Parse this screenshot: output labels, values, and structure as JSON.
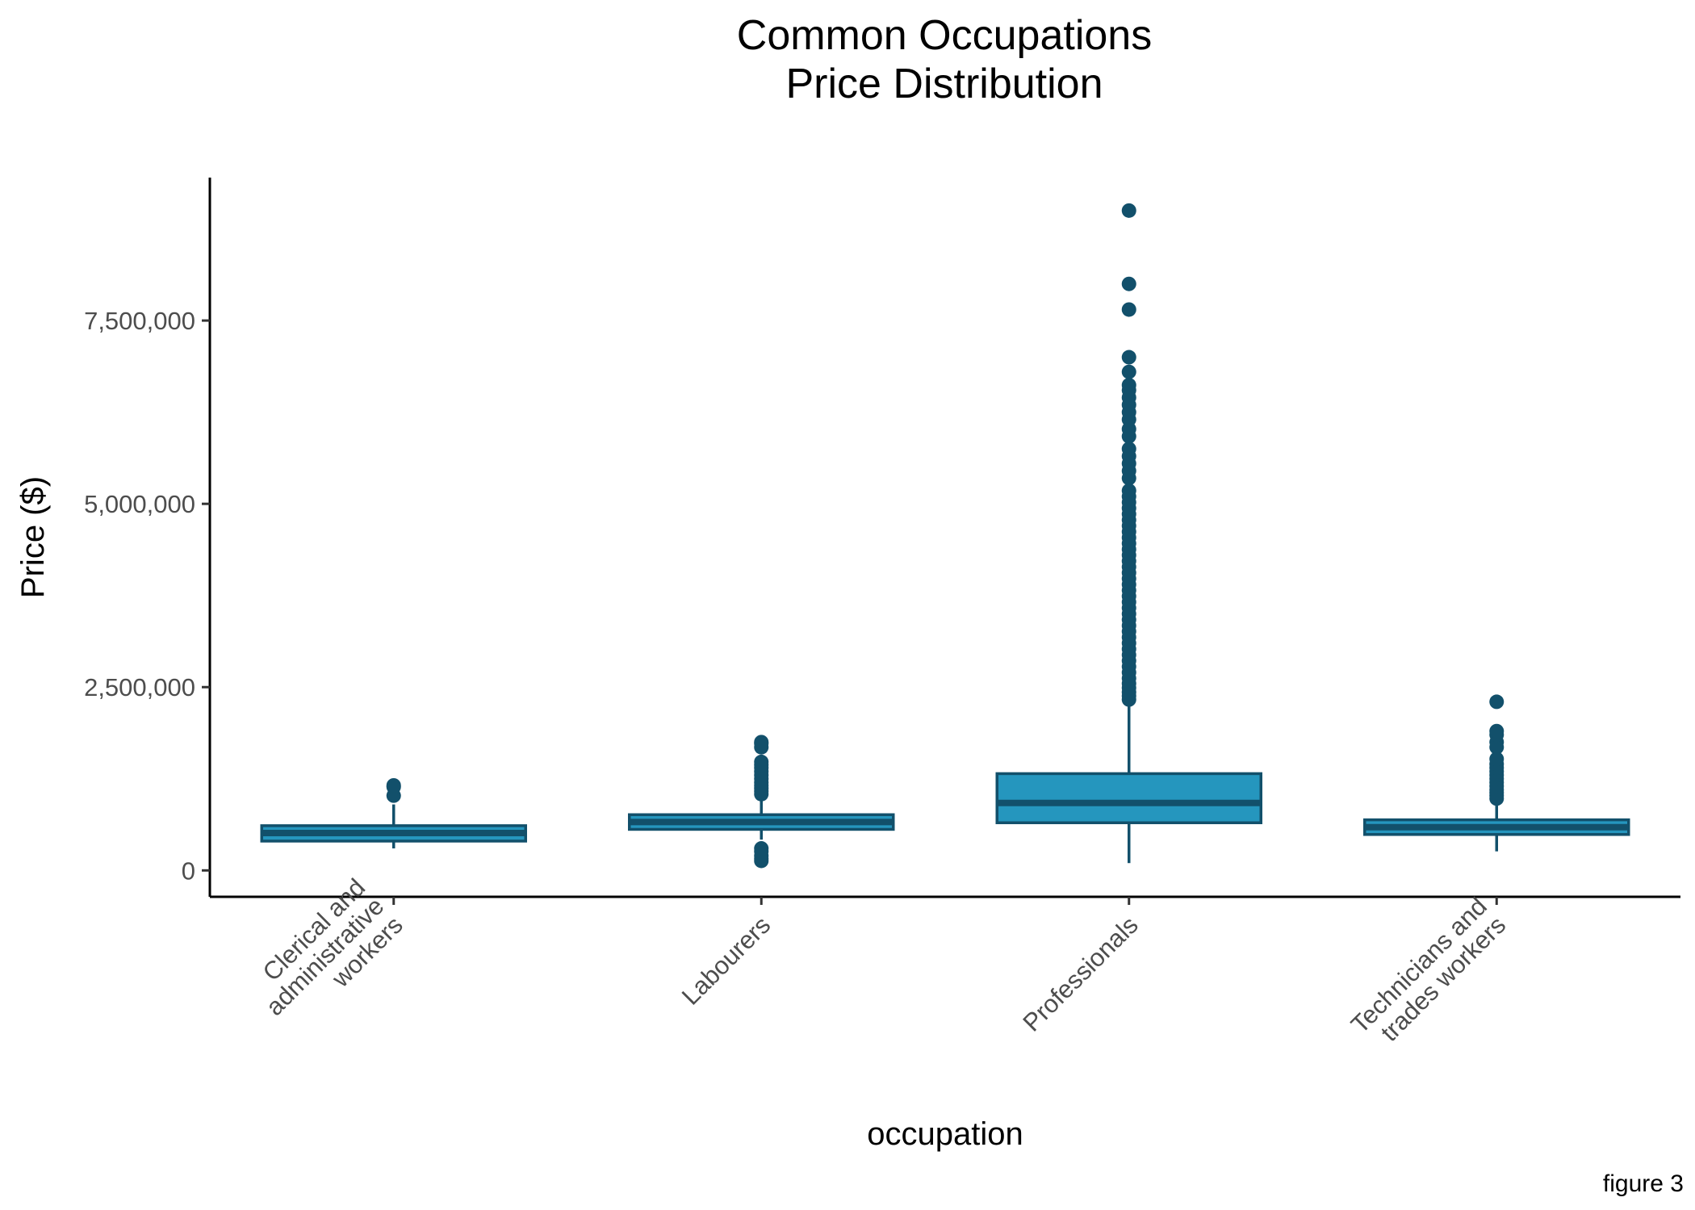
{
  "chart_data": {
    "type": "boxplot",
    "title": [
      "Common Occupations",
      "Price Distribution"
    ],
    "xlabel": "occupation",
    "ylabel": "Price ($)",
    "ylim": [
      -360000,
      9450000
    ],
    "yticks": [
      0,
      2500000,
      5000000,
      7500000
    ],
    "ytick_labels": [
      "0",
      "2,500,000",
      "5,000,000",
      "7,500,000"
    ],
    "box_fill": "#2596be",
    "box_edge": "#12506b",
    "caption": "figure 3",
    "categories": [
      {
        "label": [
          "Clerical and",
          "administrative",
          "workers"
        ],
        "whisker_low": 300000,
        "q1": 400000,
        "median": 510000,
        "q3": 610000,
        "whisker_high": 900000,
        "outliers": [
          1020000,
          1140000,
          1160000
        ]
      },
      {
        "label": [
          "Labourers"
        ],
        "whisker_low": 420000,
        "q1": 560000,
        "median": 660000,
        "q3": 760000,
        "whisker_high": 960000,
        "outliers": [
          130000,
          160000,
          200000,
          260000,
          300000,
          1040000,
          1080000,
          1120000,
          1160000,
          1200000,
          1250000,
          1300000,
          1350000,
          1400000,
          1440000,
          1480000,
          1680000,
          1730000,
          1750000
        ]
      },
      {
        "label": [
          "Professionals"
        ],
        "whisker_low": 100000,
        "q1": 650000,
        "median": 920000,
        "q3": 1320000,
        "whisker_high": 2300000,
        "outliers": [
          2330000,
          2380000,
          2430000,
          2490000,
          2550000,
          2620000,
          2700000,
          2780000,
          2860000,
          2940000,
          3020000,
          3100000,
          3180000,
          3260000,
          3340000,
          3420000,
          3500000,
          3580000,
          3660000,
          3740000,
          3820000,
          3900000,
          3980000,
          4060000,
          4140000,
          4220000,
          4300000,
          4380000,
          4460000,
          4540000,
          4620000,
          4700000,
          4780000,
          4860000,
          4940000,
          5020000,
          5100000,
          5180000,
          5350000,
          5450000,
          5550000,
          5650000,
          5750000,
          5920000,
          6020000,
          6150000,
          6250000,
          6350000,
          6450000,
          6550000,
          6620000,
          6800000,
          7000000,
          7650000,
          8000000,
          9000000
        ]
      },
      {
        "label": [
          "Technicians and",
          "trades workers"
        ],
        "whisker_low": 260000,
        "q1": 490000,
        "median": 590000,
        "q3": 690000,
        "whisker_high": 920000,
        "outliers": [
          980000,
          1020000,
          1060000,
          1100000,
          1150000,
          1200000,
          1250000,
          1300000,
          1350000,
          1400000,
          1450000,
          1520000,
          1680000,
          1750000,
          1850000,
          1900000,
          2300000
        ]
      }
    ]
  }
}
